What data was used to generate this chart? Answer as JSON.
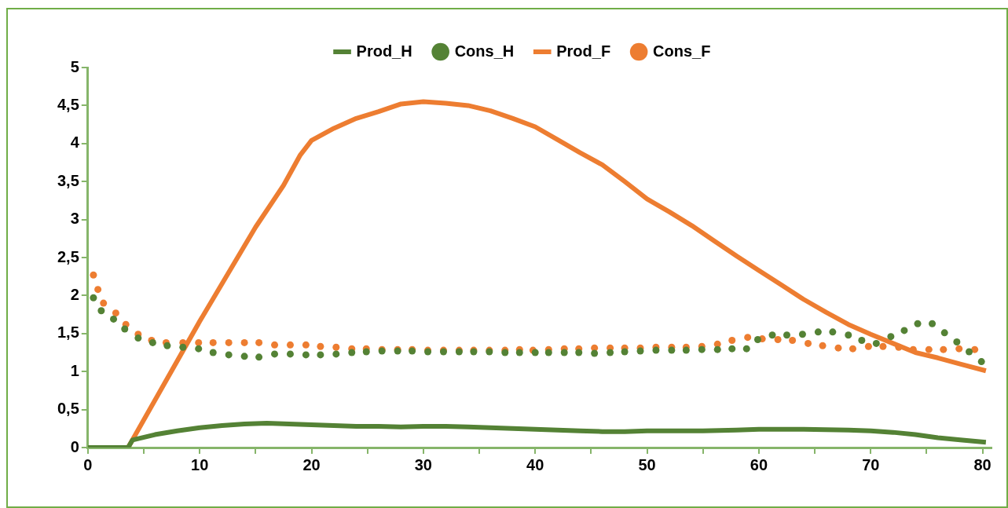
{
  "chart_data": {
    "type": "line",
    "xlim": [
      0,
      80.8
    ],
    "ylim": [
      0,
      5
    ],
    "xticks": [
      0,
      {
        "value": 5,
        "label": null
      },
      10,
      {
        "value": 15,
        "label": null
      },
      20,
      {
        "value": 25,
        "label": null
      },
      30,
      {
        "value": 35,
        "label": null
      },
      40,
      {
        "value": 45,
        "label": null
      },
      50,
      {
        "value": 55,
        "label": null
      },
      60,
      {
        "value": 65,
        "label": null
      },
      70,
      {
        "value": 75,
        "label": null
      },
      80
    ],
    "yticks": [
      0,
      {
        "value": 0.5,
        "label": "0,5"
      },
      1,
      {
        "value": 1.5,
        "label": "1,5"
      },
      2,
      {
        "value": 2.5,
        "label": "2,5"
      },
      3,
      {
        "value": 3.5,
        "label": "3,5"
      },
      4,
      {
        "value": 4.5,
        "label": "4,5"
      },
      5
    ],
    "grid": false,
    "legend": "top",
    "marker": "none",
    "series": [
      {
        "name": "Prod_H",
        "color": "#548235",
        "line_style": "solid",
        "x": [
          0,
          3.6,
          4,
          6,
          8,
          10,
          12,
          14,
          16,
          18,
          20,
          22,
          24,
          26,
          28,
          30,
          32,
          34,
          36,
          38,
          40,
          42,
          44,
          46,
          48,
          50,
          55,
          58,
          60,
          64,
          68,
          70,
          72,
          74,
          76,
          78,
          80.3
        ],
        "values": [
          0,
          0,
          0.1,
          0.17,
          0.22,
          0.26,
          0.29,
          0.31,
          0.32,
          0.31,
          0.3,
          0.29,
          0.28,
          0.28,
          0.27,
          0.28,
          0.28,
          0.27,
          0.26,
          0.25,
          0.24,
          0.23,
          0.22,
          0.21,
          0.21,
          0.22,
          0.22,
          0.23,
          0.24,
          0.24,
          0.23,
          0.22,
          0.2,
          0.17,
          0.13,
          0.1,
          0.07
        ]
      },
      {
        "name": "Cons_H",
        "type": "scatter",
        "color": "#548235",
        "line_style": "none",
        "marker": "circle",
        "x": [
          0.5,
          1.2,
          2.3,
          3.3,
          4.5,
          5.8,
          7.1,
          8.5,
          9.9,
          11.2,
          12.6,
          14,
          15.3,
          16.7,
          18.1,
          19.5,
          20.8,
          22.2,
          23.6,
          24.9,
          26.3,
          27.7,
          29,
          30.4,
          31.8,
          33.2,
          34.5,
          35.9,
          37.3,
          38.6,
          40,
          41.2,
          42.6,
          43.9,
          45.3,
          46.7,
          48,
          49.4,
          50.8,
          52.2,
          53.5,
          54.9,
          56.3,
          57.6,
          58.9,
          59.9,
          61.2,
          62.5,
          63.9,
          65.3,
          66.6,
          68,
          69.2,
          70.5,
          71.8,
          73,
          74.2,
          75.5,
          76.6,
          77.7,
          78.8,
          79.9
        ],
        "values": [
          1.97,
          1.8,
          1.69,
          1.56,
          1.44,
          1.38,
          1.34,
          1.32,
          1.3,
          1.25,
          1.22,
          1.2,
          1.19,
          1.23,
          1.23,
          1.22,
          1.22,
          1.23,
          1.25,
          1.26,
          1.27,
          1.27,
          1.27,
          1.26,
          1.26,
          1.26,
          1.26,
          1.26,
          1.25,
          1.25,
          1.25,
          1.25,
          1.25,
          1.25,
          1.24,
          1.25,
          1.26,
          1.27,
          1.28,
          1.28,
          1.28,
          1.29,
          1.29,
          1.3,
          1.3,
          1.42,
          1.48,
          1.48,
          1.49,
          1.52,
          1.52,
          1.48,
          1.41,
          1.37,
          1.46,
          1.54,
          1.63,
          1.63,
          1.51,
          1.39,
          1.26,
          1.13
        ]
      },
      {
        "name": "Prod_F",
        "color": "#ed7d31",
        "line_style": "solid",
        "x": [
          0,
          3.6,
          10,
          15,
          17.5,
          19,
          20,
          22,
          24,
          26,
          28,
          30,
          32,
          34,
          36,
          38,
          40,
          42,
          44,
          46,
          48,
          50,
          52,
          54,
          56,
          58,
          60,
          62,
          64,
          66,
          68,
          70,
          72,
          74,
          76,
          78,
          80.3
        ],
        "values": [
          0,
          0,
          1.66,
          2.9,
          3.45,
          3.85,
          4.04,
          4.2,
          4.33,
          4.42,
          4.52,
          4.55,
          4.53,
          4.5,
          4.43,
          4.33,
          4.22,
          4.05,
          3.88,
          3.72,
          3.5,
          3.27,
          3.1,
          2.92,
          2.72,
          2.52,
          2.33,
          2.14,
          1.95,
          1.78,
          1.62,
          1.49,
          1.37,
          1.25,
          1.18,
          1.1,
          1.01
        ]
      },
      {
        "name": "Cons_F",
        "type": "scatter",
        "color": "#ed7d31",
        "line_style": "none",
        "marker": "circle",
        "x": [
          0.5,
          0.9,
          1.4,
          2.5,
          3.4,
          4.5,
          5.7,
          7,
          8.5,
          9.9,
          11.2,
          12.6,
          14,
          15.3,
          16.7,
          18.1,
          19.5,
          20.8,
          22.2,
          23.6,
          24.9,
          26.3,
          27.7,
          29,
          30.4,
          31.8,
          33.2,
          34.5,
          35.9,
          37.3,
          38.6,
          39.8,
          41.2,
          42.6,
          43.9,
          45.3,
          46.7,
          48,
          49.4,
          50.8,
          52.2,
          53.5,
          54.9,
          56.3,
          57.6,
          59,
          60.3,
          61.7,
          63,
          64.4,
          65.7,
          67.1,
          68.4,
          69.8,
          71.1,
          72.5,
          73.8,
          75.2,
          76.5,
          77.9,
          79.3
        ],
        "values": [
          2.27,
          2.08,
          1.9,
          1.77,
          1.62,
          1.49,
          1.41,
          1.38,
          1.38,
          1.38,
          1.38,
          1.38,
          1.38,
          1.38,
          1.35,
          1.35,
          1.35,
          1.33,
          1.32,
          1.3,
          1.3,
          1.29,
          1.29,
          1.29,
          1.28,
          1.28,
          1.28,
          1.28,
          1.28,
          1.28,
          1.29,
          1.28,
          1.29,
          1.3,
          1.3,
          1.31,
          1.31,
          1.31,
          1.31,
          1.32,
          1.32,
          1.32,
          1.33,
          1.36,
          1.41,
          1.45,
          1.43,
          1.42,
          1.41,
          1.37,
          1.34,
          1.31,
          1.3,
          1.33,
          1.33,
          1.32,
          1.29,
          1.29,
          1.29,
          1.3,
          1.29
        ]
      }
    ]
  }
}
